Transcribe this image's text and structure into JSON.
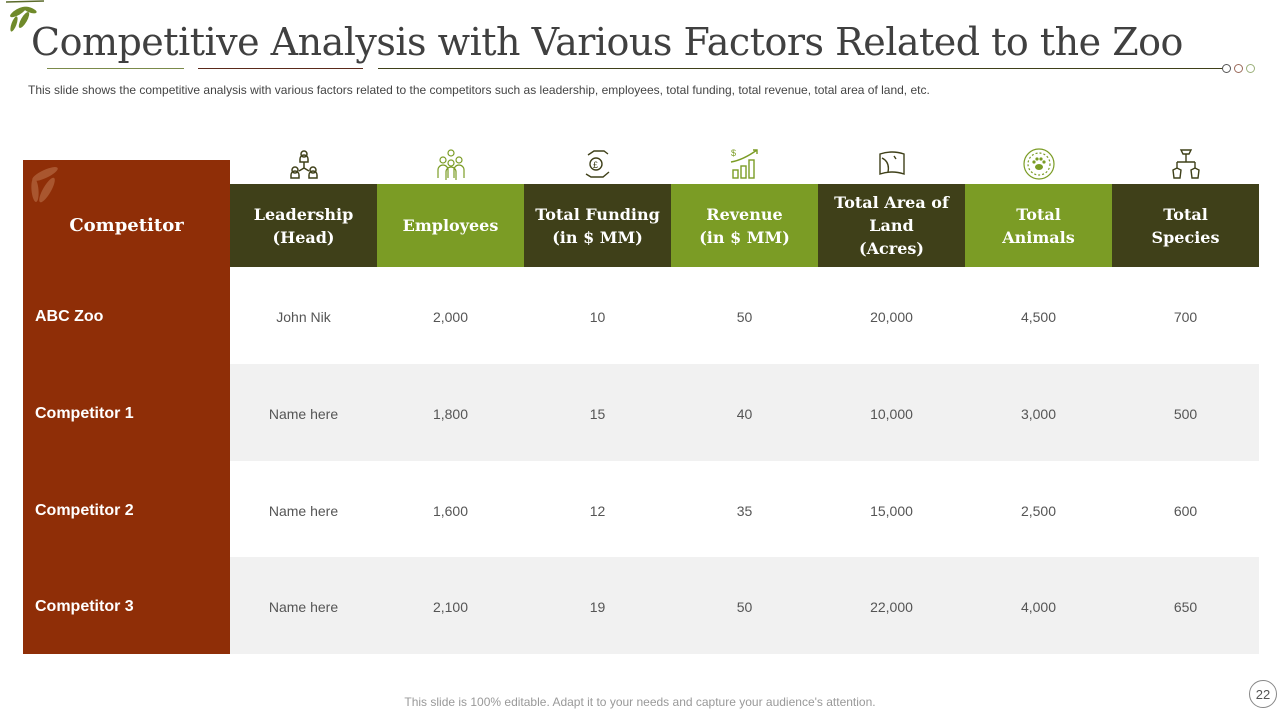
{
  "title": "Competitive Analysis with Various Factors Related to the Zoo",
  "subtitle": "This slide shows the competitive analysis with various factors related to the competitors such as leadership,  employees, total funding, total revenue,  total area of land, etc.",
  "table": {
    "first_header": "Competitor",
    "columns": [
      {
        "label": "Leadership\n(Head)",
        "icon": "team-hierarchy-icon"
      },
      {
        "label": "Employees",
        "icon": "employees-group-icon"
      },
      {
        "label": "Total Funding\n(in $ MM)",
        "icon": "pound-coin-hand-icon"
      },
      {
        "label": "Revenue\n(in $ MM)",
        "icon": "growth-bars-icon"
      },
      {
        "label": "Total Area of\nLand\n(Acres)",
        "icon": "land-map-icon"
      },
      {
        "label": "Total\nAnimals",
        "icon": "paw-badge-icon"
      },
      {
        "label": "Total\nSpecies",
        "icon": "species-hierarchy-icon"
      }
    ],
    "rows": [
      {
        "name": "ABC Zoo",
        "values": [
          "John Nik",
          "2,000",
          "10",
          "50",
          "20,000",
          "4,500",
          "700"
        ]
      },
      {
        "name": "Competitor 1",
        "values": [
          "Name here",
          "1,800",
          "15",
          "40",
          "10,000",
          "3,000",
          "500"
        ]
      },
      {
        "name": "Competitor 2",
        "values": [
          "Name here",
          "1,600",
          "12",
          "35",
          "15,000",
          "2,500",
          "600"
        ]
      },
      {
        "name": "Competitor 3",
        "values": [
          "Name here",
          "2,100",
          "19",
          "50",
          "22,000",
          "4,000",
          "650"
        ]
      }
    ]
  },
  "footer": "This slide is 100% editable. Adapt it to your needs and capture your audience's attention.",
  "page_number": "22",
  "colors": {
    "accent_red": "#8f2e07",
    "dark_olive": "#3f4019",
    "green": "#7b9c25"
  }
}
